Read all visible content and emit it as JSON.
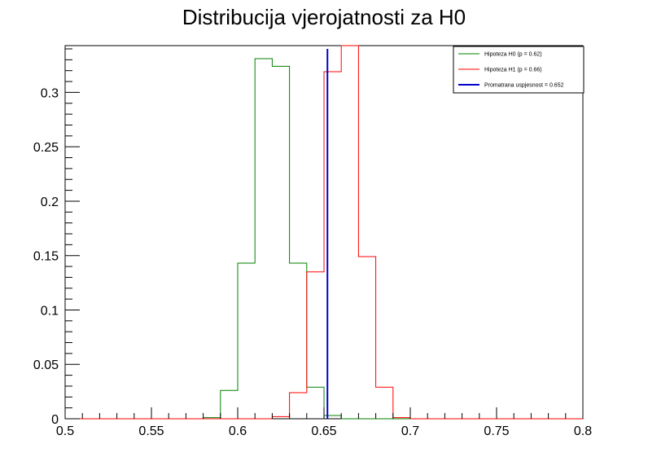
{
  "chart_data": {
    "type": "histogram",
    "title": "Distribucija vjerojatnosti za H0",
    "xlabel": "",
    "ylabel": "",
    "xlim": [
      0.5,
      0.8
    ],
    "ylim": [
      0,
      0.343
    ],
    "grid": false,
    "legend_position": "top-right",
    "bin_edges": [
      0.5,
      0.51,
      0.52,
      0.53,
      0.54,
      0.55,
      0.56,
      0.57,
      0.58,
      0.59,
      0.6,
      0.61,
      0.62,
      0.63,
      0.64,
      0.65,
      0.66,
      0.67,
      0.68,
      0.69,
      0.7,
      0.71,
      0.72,
      0.73,
      0.74,
      0.75,
      0.76,
      0.77,
      0.78,
      0.79,
      0.8
    ],
    "series": [
      {
        "name": "Hipoteza H0 (p = 0.62)",
        "color": "#008000",
        "values": [
          0,
          0,
          0,
          0,
          0,
          0,
          0,
          0,
          0.001,
          0.026,
          0.143,
          0.331,
          0.324,
          0.143,
          0.029,
          0.003,
          0,
          0,
          0,
          0,
          0,
          0,
          0,
          0,
          0,
          0,
          0,
          0,
          0,
          0
        ]
      },
      {
        "name": "Hipoteza H1 (p = 0.66)",
        "color": "#ff0000",
        "values": [
          0,
          0,
          0,
          0,
          0,
          0,
          0,
          0,
          0,
          0,
          0,
          0,
          0.002,
          0.024,
          0.135,
          0.319,
          0.343,
          0.149,
          0.029,
          0.001,
          0,
          0,
          0,
          0,
          0,
          0,
          0,
          0,
          0,
          0
        ]
      }
    ],
    "vline": {
      "name": "Promatrana uspjesnost = 0.652",
      "x": 0.652,
      "color": "#0000cc"
    },
    "x_ticks": [
      0.5,
      0.55,
      0.6,
      0.65,
      0.7,
      0.75,
      0.8
    ],
    "x_tick_labels": [
      "0.5",
      "0.55",
      "0.6",
      "0.65",
      "0.7",
      "0.75",
      "0.8"
    ],
    "y_ticks": [
      0,
      0.05,
      0.1,
      0.15,
      0.2,
      0.25,
      0.3
    ],
    "y_tick_labels": [
      "0",
      "0.05",
      "0.1",
      "0.15",
      "0.2",
      "0.25",
      "0.3"
    ]
  }
}
